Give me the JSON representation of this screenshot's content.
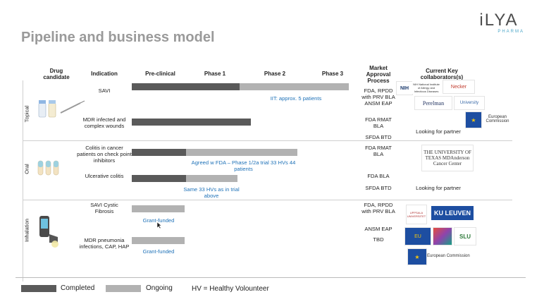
{
  "title": "Pipeline and business model",
  "logo": {
    "main": "iLYA",
    "sub": "PHARMA"
  },
  "headers": {
    "drug": "Drug candidate",
    "indication": "Indication",
    "preclinical": "Pre-clinical",
    "phase1": "Phase 1",
    "phase2": "Phase 2",
    "phase3": "Phase 3",
    "market": "Market Approval Process",
    "collab": "Current Key collaborators(s)"
  },
  "categories": [
    "Topical",
    "Oral",
    "Inhalation"
  ],
  "rows": {
    "r1": {
      "indication": "SAVI",
      "market": "FDA, RPDD with PRV BLA ANSM EAP",
      "note": "IIT: approx. 5 patients"
    },
    "r2": {
      "indication": "MDR infected and complex wounds",
      "market": "FDA RMAT BLA",
      "market2": "SFDA BTD",
      "collab": "Looking for partner"
    },
    "r3": {
      "indication": "Colitis in cancer patients on check point inhibitors",
      "market": "FDA RMAT BLA",
      "note": "Agreed w FDA – Phase 1/2a trial 33 HVs 44 patients"
    },
    "r4": {
      "indication": "Ulcerative colitis",
      "market": "FDA BLA",
      "market2": "SFDA BTD",
      "note": "Same 33 HVs as in trial above",
      "collab": "Looking for partner"
    },
    "r5": {
      "indication": "SAVI Cystic Fibrosis",
      "market": "FDA, RPDD with PRV BLA",
      "market2": "ANSM EAP",
      "note": "Grant-funded"
    },
    "r6": {
      "indication": "MDR pneumonia infections, CAP, HAP",
      "market": "TBD",
      "note": "Grant-funded"
    }
  },
  "collaborators": {
    "nih": "NIH National Institute of Allergy and Infectious Diseases",
    "necker": "Necker",
    "perelman": "Perelman",
    "uni": "University",
    "ec1": "European Commission",
    "mdanderson": "THE UNIVERSITY OF TEXAS MDAnderson Cancer Center",
    "uppsala": "UPPSALA UNIVERSITET",
    "kuleuven": "KU LEUVEN",
    "eu": "EU",
    "slu": "SLU",
    "ec2": "European Commission"
  },
  "legend": {
    "completed": "Completed",
    "ongoing": "Ongoing",
    "hv": "HV = Healthy Volounteer"
  },
  "colors": {
    "completed": "#5a5a5a",
    "ongoing": "#b2b2b2",
    "note": "#1f72b8"
  }
}
